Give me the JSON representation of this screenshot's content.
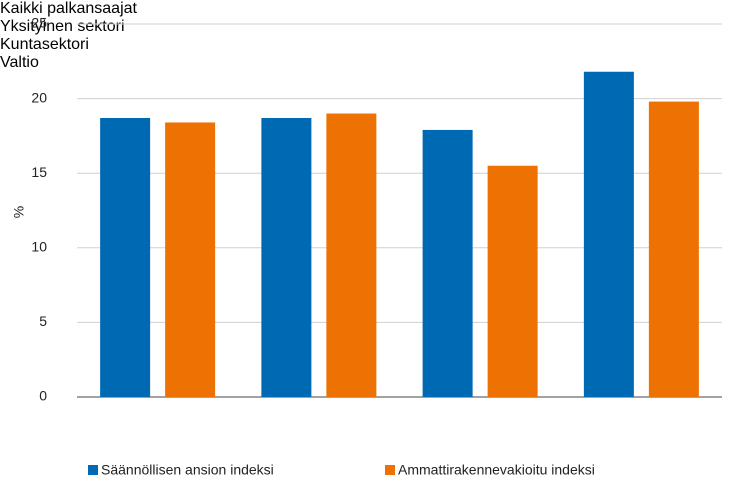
{
  "chart_data": {
    "type": "bar",
    "y_label": "%",
    "categories": [
      "Kaikki\npalkansaajat",
      "Yksityinen sektori",
      "Kuntasektori",
      "Valtio"
    ],
    "series": [
      {
        "name": "Säännöllisen ansion indeksi",
        "color": "#0069b4",
        "values": [
          18.7,
          18.7,
          17.9,
          21.8
        ]
      },
      {
        "name": "Ammattirakennevakioitu indeksi",
        "color": "#ee7203",
        "values": [
          18.4,
          19.0,
          15.5,
          19.8
        ]
      }
    ],
    "ylim": [
      0,
      25
    ],
    "yticks": [
      0,
      5,
      10,
      15,
      20,
      25
    ],
    "grid": true,
    "legend": "bottom"
  }
}
